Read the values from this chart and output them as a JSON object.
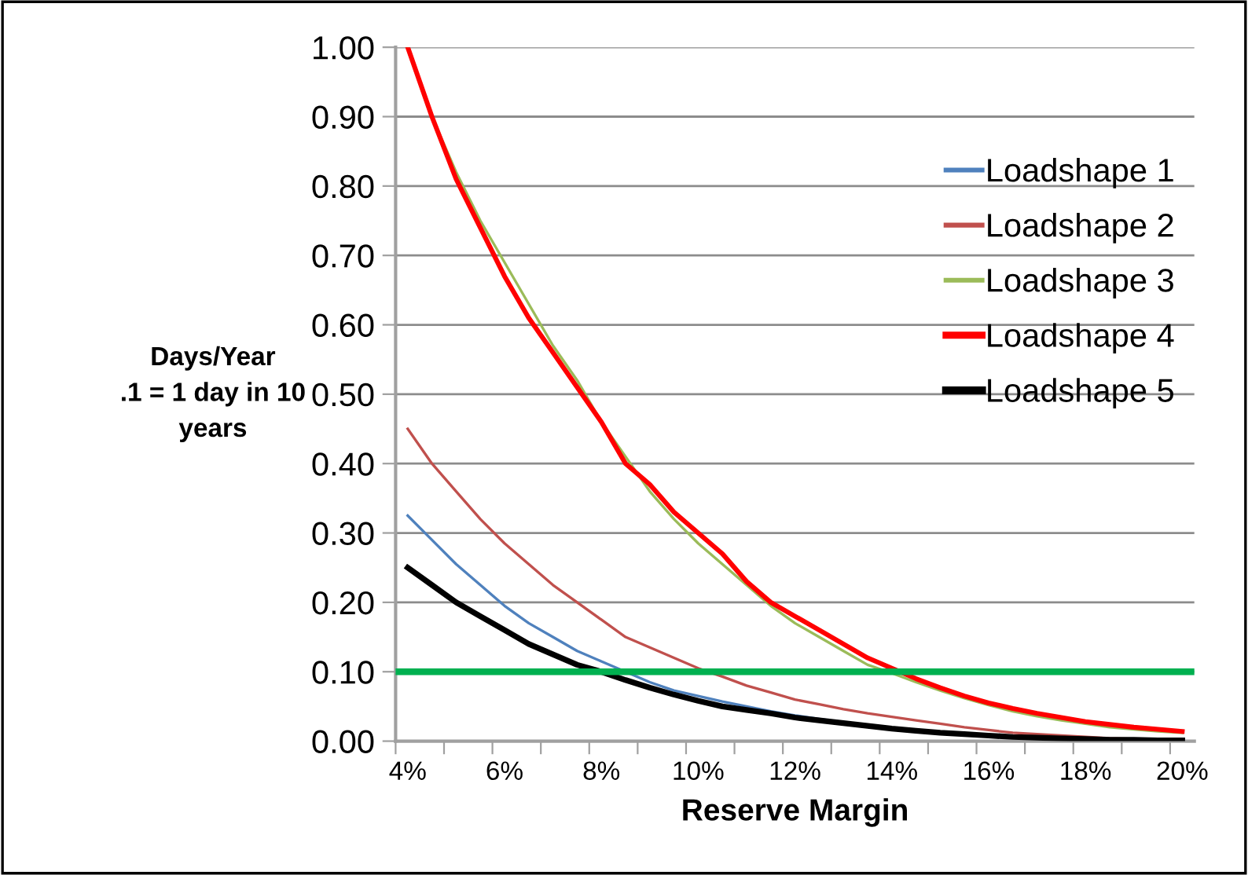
{
  "chart_data": {
    "type": "line",
    "xlabel": "Reserve Margin",
    "ylabel": "Days/Year\n.1 = 1 day in 10\nyears",
    "x": [
      4,
      4.5,
      5,
      5.5,
      6,
      6.5,
      7,
      7.5,
      8,
      8.5,
      9,
      9.5,
      10,
      10.5,
      11,
      11.5,
      12,
      12.5,
      13,
      13.5,
      14,
      14.5,
      15,
      15.5,
      16,
      16.5,
      17,
      17.5,
      18,
      18.5,
      19,
      19.5,
      20
    ],
    "series": [
      {
        "name": "Loadshape 1",
        "color": "#4f81bd",
        "values": [
          0.325,
          0.29,
          0.255,
          0.225,
          0.195,
          0.17,
          0.15,
          0.13,
          0.115,
          0.1,
          0.085,
          0.073,
          0.065,
          0.057,
          0.05,
          0.043,
          0.037,
          0.032,
          0.027,
          null,
          null,
          null,
          null,
          null,
          null,
          null,
          null,
          null,
          null,
          null,
          null,
          null,
          null
        ]
      },
      {
        "name": "Loadshape 2",
        "color": "#c0504d",
        "values": [
          0.45,
          0.4,
          0.36,
          0.32,
          0.285,
          0.255,
          0.225,
          0.2,
          0.175,
          0.15,
          0.135,
          0.12,
          0.105,
          0.093,
          0.08,
          0.07,
          0.06,
          0.053,
          0.046,
          0.04,
          0.035,
          0.03,
          0.025,
          0.02,
          0.016,
          0.012,
          0.01,
          0.008,
          0.006,
          0.004,
          0.003,
          null,
          null
        ]
      },
      {
        "name": "Loadshape 3",
        "color": "#9bbb59",
        "values": [
          1.0,
          0.9,
          0.82,
          0.75,
          0.69,
          0.63,
          0.57,
          0.52,
          0.46,
          0.41,
          0.36,
          0.32,
          0.285,
          0.255,
          0.225,
          0.195,
          0.17,
          0.15,
          0.13,
          0.11,
          0.098,
          0.085,
          0.073,
          0.062,
          0.052,
          0.043,
          0.036,
          0.03,
          0.025,
          0.02,
          0.017,
          0.014,
          0.012
        ]
      },
      {
        "name": "Loadshape 4",
        "color": "#ff0000",
        "values": [
          1.0,
          0.9,
          0.81,
          0.74,
          0.67,
          0.61,
          0.56,
          0.51,
          0.46,
          0.4,
          0.37,
          0.33,
          0.3,
          0.27,
          0.23,
          0.2,
          0.18,
          0.16,
          0.14,
          0.12,
          0.105,
          0.09,
          0.077,
          0.065,
          0.055,
          0.047,
          0.04,
          0.034,
          0.028,
          0.024,
          0.02,
          0.017,
          0.014
        ]
      },
      {
        "name": "Loadshape 5",
        "color": "#000000",
        "values": [
          0.25,
          0.225,
          0.2,
          0.18,
          0.16,
          0.14,
          0.125,
          0.11,
          0.1,
          0.088,
          0.077,
          0.067,
          0.058,
          0.05,
          0.045,
          0.04,
          0.034,
          0.03,
          0.026,
          0.022,
          0.018,
          0.015,
          0.012,
          0.01,
          0.008,
          0.006,
          0.005,
          0.004,
          0.003,
          0.002,
          0.002,
          0.001,
          0.001
        ]
      }
    ],
    "xlim": [
      3.75,
      20.25
    ],
    "xticks": [
      {
        "value": 3.75,
        "label": null
      },
      {
        "value": 4,
        "label": "4%"
      },
      {
        "value": 4.75,
        "label": null
      },
      {
        "value": 5.75,
        "label": null
      },
      {
        "value": 6,
        "label": "6%"
      },
      {
        "value": 6.75,
        "label": null
      },
      {
        "value": 7.75,
        "label": null
      },
      {
        "value": 8,
        "label": "8%"
      },
      {
        "value": 8.75,
        "label": null
      },
      {
        "value": 9.75,
        "label": null
      },
      {
        "value": 10,
        "label": "10%"
      },
      {
        "value": 10.75,
        "label": null
      },
      {
        "value": 11.75,
        "label": null
      },
      {
        "value": 12,
        "label": "12%"
      },
      {
        "value": 12.75,
        "label": null
      },
      {
        "value": 13.75,
        "label": null
      },
      {
        "value": 14,
        "label": "14%"
      },
      {
        "value": 14.75,
        "label": null
      },
      {
        "value": 15.75,
        "label": null
      },
      {
        "value": 16,
        "label": "16%"
      },
      {
        "value": 16.75,
        "label": null
      },
      {
        "value": 17.75,
        "label": null
      },
      {
        "value": 18,
        "label": "18%"
      },
      {
        "value": 18.75,
        "label": null
      },
      {
        "value": 19.75,
        "label": null
      },
      {
        "value": 20,
        "label": "20%"
      }
    ],
    "ylim": [
      0,
      1.0
    ],
    "yticks": [
      {
        "value": 0,
        "label": "0.00"
      },
      {
        "value": 0.1,
        "label": "0.10"
      },
      {
        "value": 0.2,
        "label": "0.20"
      },
      {
        "value": 0.3,
        "label": "0.30"
      },
      {
        "value": 0.4,
        "label": "0.40"
      },
      {
        "value": 0.5,
        "label": "0.50"
      },
      {
        "value": 0.6,
        "label": "0.60"
      },
      {
        "value": 0.7,
        "label": "0.70"
      },
      {
        "value": 0.8,
        "label": "0.80"
      },
      {
        "value": 0.9,
        "label": "0.90"
      },
      {
        "value": 1.0,
        "label": "1.00"
      }
    ],
    "ref_lines": [
      {
        "axis": "y",
        "value": 0.1,
        "color": "#00b050"
      }
    ],
    "grid": "y",
    "legend": "right"
  }
}
